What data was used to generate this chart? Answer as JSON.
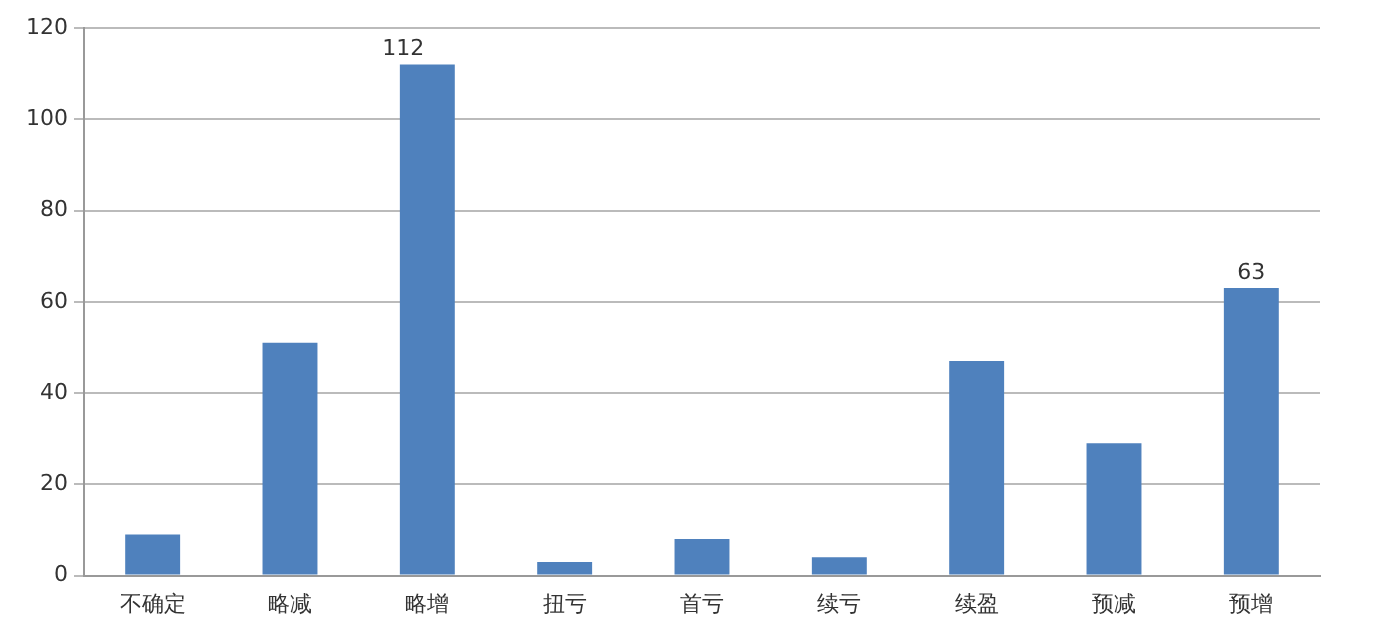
{
  "chart_data": {
    "type": "bar",
    "categories": [
      "不确定",
      "略减",
      "略增",
      "扭亏",
      "首亏",
      "续亏",
      "续盈",
      "预减",
      "预增"
    ],
    "values": [
      9,
      51,
      112,
      3,
      8,
      4,
      47,
      29,
      63
    ],
    "value_labels": [
      null,
      null,
      "112",
      null,
      null,
      null,
      null,
      null,
      "63"
    ],
    "color": "#4f81bd",
    "ylim": [
      0,
      120
    ],
    "yticks": [
      0,
      20,
      40,
      60,
      80,
      100,
      120
    ],
    "grid": "y",
    "legend": false
  }
}
